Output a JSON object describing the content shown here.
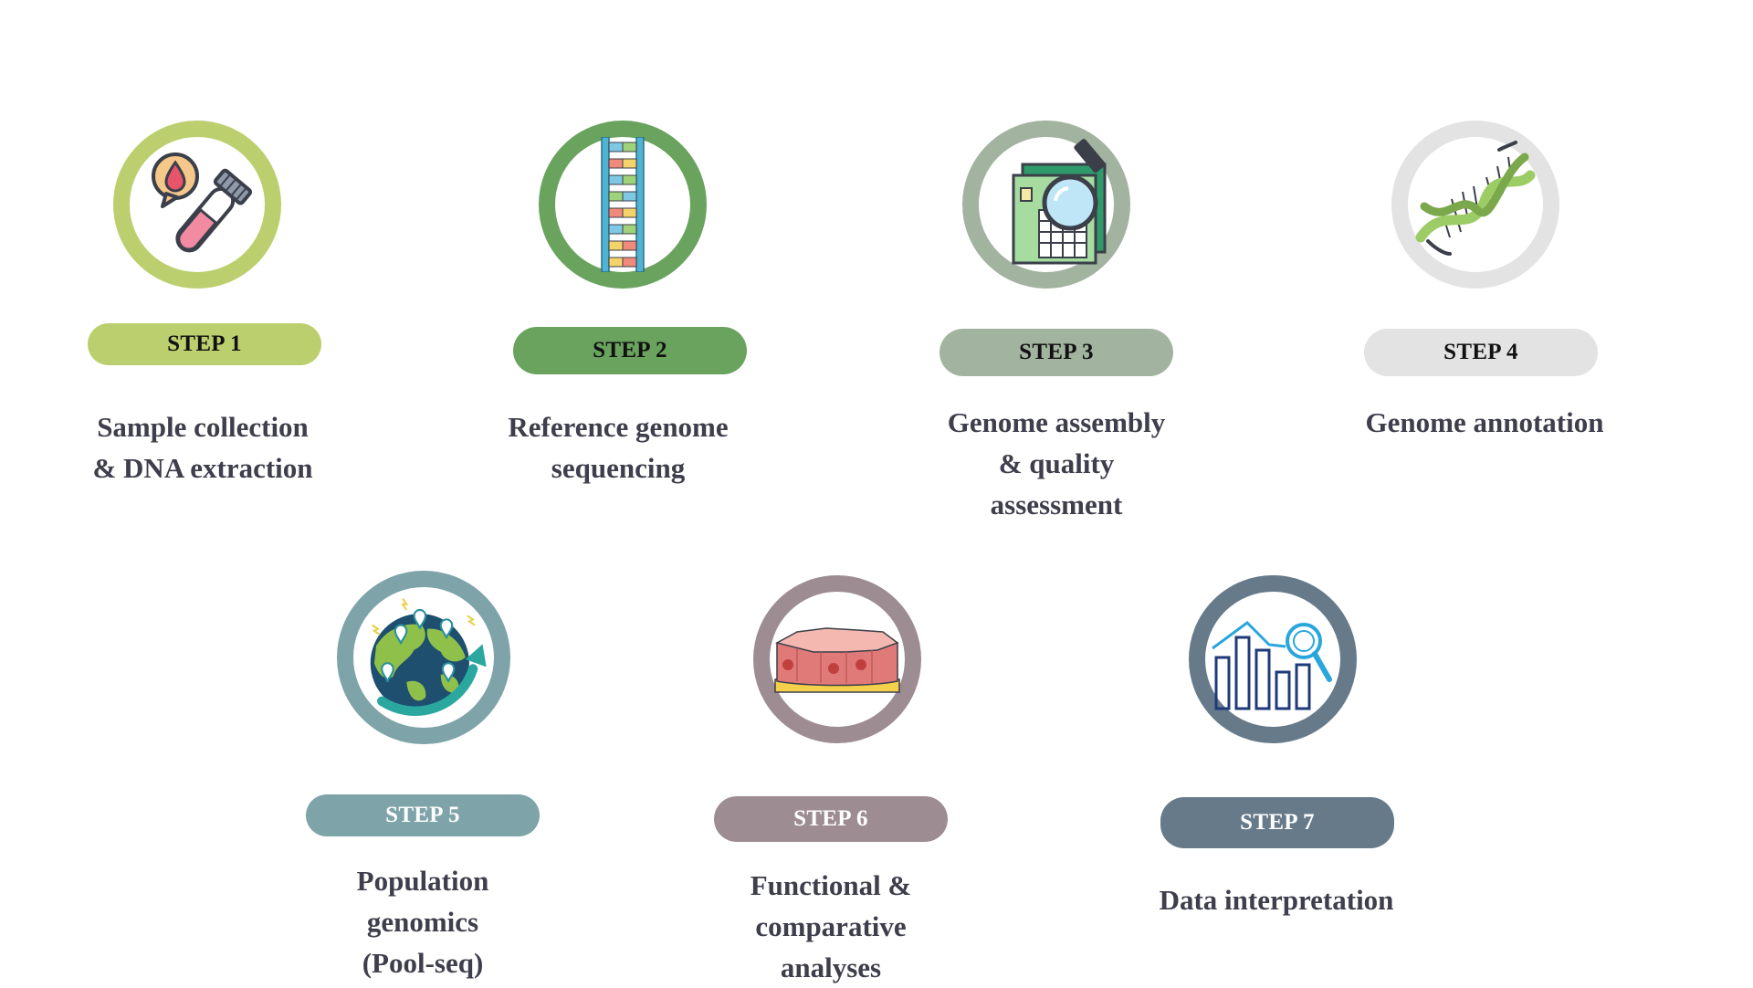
{
  "steps": [
    {
      "step": "STEP 1",
      "label": "Sample collection\n& DNA extraction",
      "icon": "test-tube-blood-icon",
      "ring_color": "#bccf6e",
      "pill_color": "#bccf6e",
      "pill_text_color": "#111111"
    },
    {
      "step": "STEP 2",
      "label": "Reference genome\nsequencing",
      "icon": "dna-sequence-ladder-icon",
      "ring_color": "#69a35e",
      "pill_color": "#69a35e",
      "pill_text_color": "#111111"
    },
    {
      "step": "STEP 3",
      "label": "Genome assembly\n& quality\nassessment",
      "icon": "magnifier-documents-icon",
      "ring_color": "#a2b4a0",
      "pill_color": "#a2b4a0",
      "pill_text_color": "#111111"
    },
    {
      "step": "STEP 4",
      "label": "Genome annotation",
      "icon": "dna-helix-icon",
      "ring_color": "#e3e3e3",
      "pill_color": "#e3e3e3",
      "pill_text_color": "#111111"
    },
    {
      "step": "STEP 5",
      "label": "Population\ngenomics\n(Pool-seq)",
      "icon": "globe-locations-icon",
      "ring_color": "#7ea3a8",
      "pill_color": "#7ea3a8",
      "pill_text_color": "#ffffff"
    },
    {
      "step": "STEP 6",
      "label": "Functional &\ncomparative\nanalyses",
      "icon": "cell-tissue-icon",
      "ring_color": "#9e8c93",
      "pill_color": "#9e8c93",
      "pill_text_color": "#ffffff"
    },
    {
      "step": "STEP 7",
      "label": "Data interpretation",
      "icon": "bar-chart-magnifier-icon",
      "ring_color": "#667a8a",
      "pill_color": "#667a8a",
      "pill_text_color": "#ffffff"
    }
  ]
}
